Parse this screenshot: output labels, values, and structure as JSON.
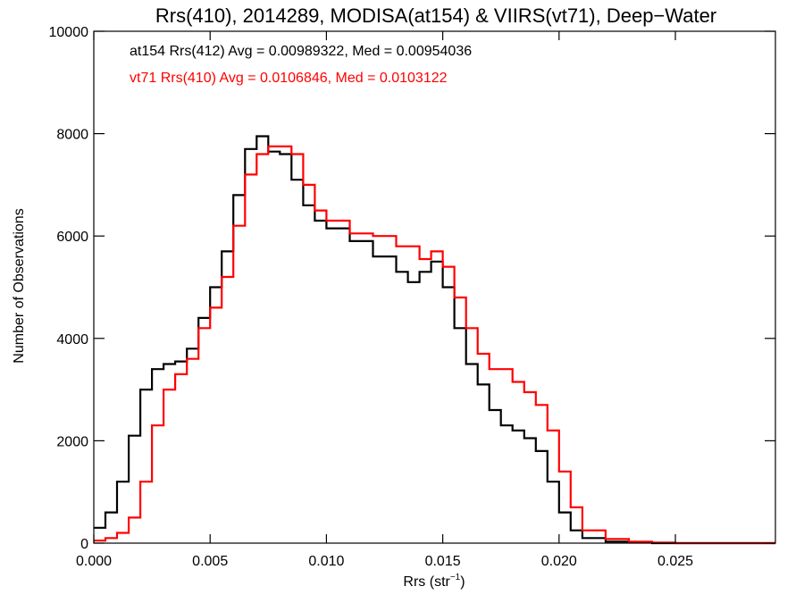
{
  "chart_data": {
    "type": "line",
    "title": "Rrs(410), 2014289, MODISA(at154) & VIIRS(vt71), Deep−Water",
    "xlabel_main": "Rrs (str",
    "xlabel_sup": "−1",
    "xlabel_end": ")",
    "ylabel": "Number of Observations",
    "xlim": [
      0,
      0.0293
    ],
    "ylim": [
      0,
      10000
    ],
    "x_ticks": [
      0.0,
      0.005,
      0.01,
      0.015,
      0.02,
      0.025
    ],
    "x_tick_labels": [
      "0.000",
      "0.005",
      "0.010",
      "0.015",
      "0.020",
      "0.025"
    ],
    "y_ticks": [
      0,
      2000,
      4000,
      6000,
      8000,
      10000
    ],
    "y_tick_labels": [
      "0",
      "2000",
      "4000",
      "6000",
      "8000",
      "10000"
    ],
    "grid": false,
    "series": [
      {
        "name": "at154",
        "color": "#000000",
        "annotation": "at154 Rrs(412) Avg = 0.00989322, Med = 0.00954036",
        "points": [
          [
            0.0,
            300
          ],
          [
            0.0005,
            600
          ],
          [
            0.001,
            1200
          ],
          [
            0.0015,
            2100
          ],
          [
            0.002,
            3000
          ],
          [
            0.0025,
            3400
          ],
          [
            0.003,
            3500
          ],
          [
            0.0035,
            3550
          ],
          [
            0.004,
            3800
          ],
          [
            0.0045,
            4400
          ],
          [
            0.005,
            5000
          ],
          [
            0.0055,
            5700
          ],
          [
            0.006,
            6800
          ],
          [
            0.0065,
            7700
          ],
          [
            0.007,
            7950
          ],
          [
            0.0075,
            7650
          ],
          [
            0.008,
            7600
          ],
          [
            0.0085,
            7100
          ],
          [
            0.009,
            6600
          ],
          [
            0.0095,
            6300
          ],
          [
            0.01,
            6150
          ],
          [
            0.011,
            5900
          ],
          [
            0.012,
            5600
          ],
          [
            0.013,
            5300
          ],
          [
            0.0135,
            5100
          ],
          [
            0.014,
            5300
          ],
          [
            0.0145,
            5500
          ],
          [
            0.015,
            5000
          ],
          [
            0.0155,
            4200
          ],
          [
            0.016,
            3500
          ],
          [
            0.0165,
            3100
          ],
          [
            0.017,
            2600
          ],
          [
            0.0175,
            2300
          ],
          [
            0.018,
            2200
          ],
          [
            0.0185,
            2050
          ],
          [
            0.019,
            1800
          ],
          [
            0.0195,
            1200
          ],
          [
            0.02,
            600
          ],
          [
            0.0205,
            250
          ],
          [
            0.021,
            100
          ],
          [
            0.022,
            30
          ],
          [
            0.023,
            10
          ],
          [
            0.024,
            0
          ],
          [
            0.0293,
            0
          ]
        ]
      },
      {
        "name": "vt71",
        "color": "#ff0000",
        "annotation": "vt71 Rrs(410) Avg = 0.0106846, Med = 0.0103122",
        "points": [
          [
            0.0,
            50
          ],
          [
            0.0005,
            100
          ],
          [
            0.001,
            200
          ],
          [
            0.0015,
            500
          ],
          [
            0.002,
            1200
          ],
          [
            0.0025,
            2300
          ],
          [
            0.003,
            3000
          ],
          [
            0.0035,
            3300
          ],
          [
            0.004,
            3600
          ],
          [
            0.0045,
            4200
          ],
          [
            0.005,
            4600
          ],
          [
            0.0055,
            5200
          ],
          [
            0.006,
            6200
          ],
          [
            0.0065,
            7200
          ],
          [
            0.007,
            7600
          ],
          [
            0.0075,
            7750
          ],
          [
            0.008,
            7750
          ],
          [
            0.0085,
            7600
          ],
          [
            0.009,
            7000
          ],
          [
            0.0095,
            6500
          ],
          [
            0.01,
            6300
          ],
          [
            0.011,
            6050
          ],
          [
            0.012,
            6000
          ],
          [
            0.013,
            5800
          ],
          [
            0.014,
            5550
          ],
          [
            0.0145,
            5700
          ],
          [
            0.015,
            5400
          ],
          [
            0.0155,
            4800
          ],
          [
            0.016,
            4200
          ],
          [
            0.0165,
            3700
          ],
          [
            0.017,
            3400
          ],
          [
            0.0175,
            3400
          ],
          [
            0.018,
            3150
          ],
          [
            0.0185,
            2950
          ],
          [
            0.019,
            2700
          ],
          [
            0.0195,
            2200
          ],
          [
            0.02,
            1400
          ],
          [
            0.0205,
            700
          ],
          [
            0.021,
            250
          ],
          [
            0.022,
            80
          ],
          [
            0.023,
            30
          ],
          [
            0.024,
            10
          ],
          [
            0.025,
            0
          ],
          [
            0.0293,
            0
          ]
        ]
      }
    ]
  }
}
